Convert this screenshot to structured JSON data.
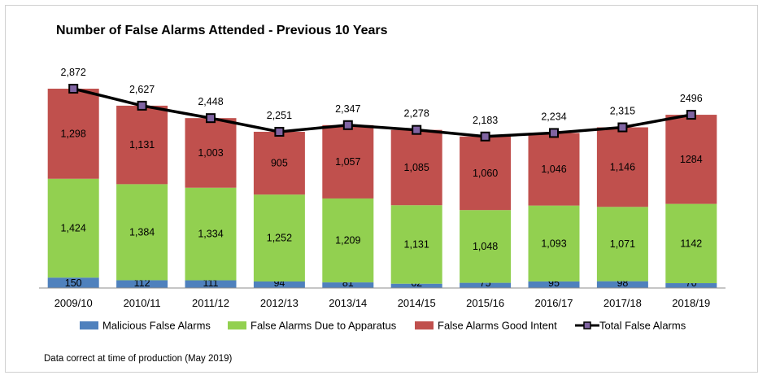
{
  "chart_data": {
    "type": "bar",
    "stacked": true,
    "title": "Number of False Alarms Attended - Previous 10 Years",
    "categories": [
      "2009/10",
      "2010/11",
      "2011/12",
      "2012/13",
      "2013/14",
      "2014/15",
      "2015/16",
      "2016/17",
      "2017/18",
      "2018/19"
    ],
    "series": [
      {
        "name": "Malicious False Alarms",
        "color": "#4f81bd",
        "values": [
          150,
          112,
          111,
          94,
          81,
          62,
          75,
          95,
          98,
          70
        ],
        "labels": [
          "150",
          "112",
          "111",
          "94",
          "81",
          "62",
          "75",
          "95",
          "98",
          "70"
        ]
      },
      {
        "name": "False Alarms Due to Apparatus",
        "color": "#92d050",
        "values": [
          1424,
          1384,
          1334,
          1252,
          1209,
          1131,
          1048,
          1093,
          1071,
          1142
        ],
        "labels": [
          "1,424",
          "1,384",
          "1,334",
          "1,252",
          "1,209",
          "1,131",
          "1,048",
          "1,093",
          "1,071",
          "1142"
        ]
      },
      {
        "name": "False Alarms Good Intent",
        "color": "#c0504d",
        "values": [
          1298,
          1131,
          1003,
          905,
          1057,
          1085,
          1060,
          1046,
          1146,
          1284
        ],
        "labels": [
          "1,298",
          "1,131",
          "1,003",
          "905",
          "1,057",
          "1,085",
          "1,060",
          "1,046",
          "1,146",
          "1284"
        ]
      }
    ],
    "line": {
      "name": "Total False Alarms",
      "color": "#000000",
      "marker_color": "#8064a2",
      "values": [
        2872,
        2627,
        2448,
        2251,
        2347,
        2278,
        2183,
        2234,
        2315,
        2496
      ],
      "labels": [
        "2,872",
        "2,627",
        "2,448",
        "2,251",
        "2,347",
        "2,278",
        "2,183",
        "2,234",
        "2,315",
        "2496"
      ]
    },
    "ylim": [
      0,
      2872
    ],
    "legend_position": "bottom",
    "footnote": "Data correct at time of production (May 2019)"
  }
}
